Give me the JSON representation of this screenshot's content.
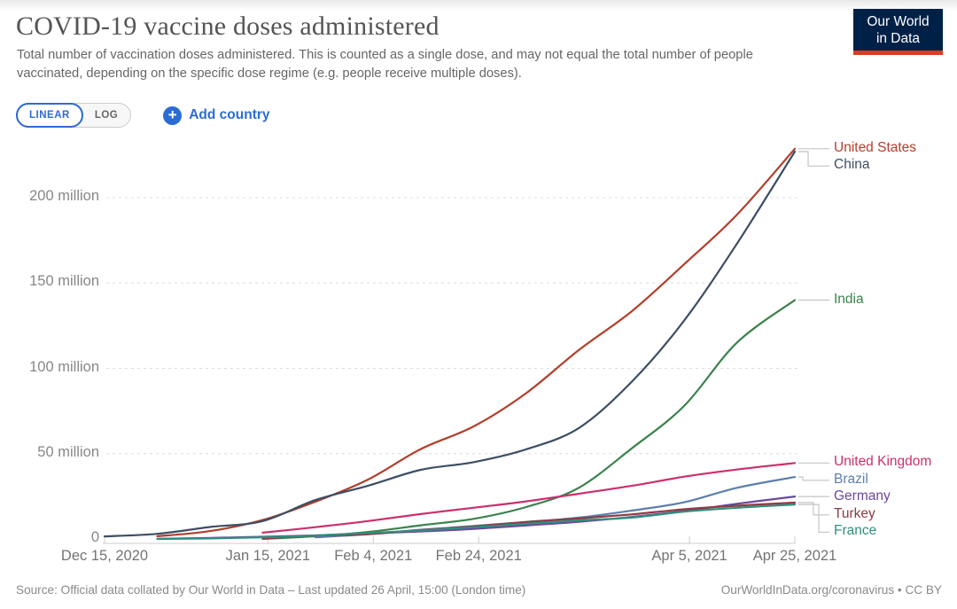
{
  "header": {
    "title": "COVID-19 vaccine doses administered",
    "subtitle": "Total number of vaccination doses administered. This is counted as a single dose, and may not equal the total number of people vaccinated, depending on the specific dose regime (e.g. people receive multiple doses).",
    "logo": {
      "line1": "Our World",
      "line2": "in Data",
      "bg_color": "#002147",
      "bar_color": "#dc3b22"
    }
  },
  "controls": {
    "scale_toggle": {
      "linear_label": "LINEAR",
      "log_label": "LOG",
      "selected": "LINEAR"
    },
    "add_country_label": "Add country",
    "plus_icon": "+",
    "accent_color": "#2b6cd3"
  },
  "chart_data": {
    "type": "line",
    "title": "COVID-19 vaccine doses administered",
    "unit": "doses (millions)",
    "grid": "dashed-horizontal",
    "legend_position": "right-end-labels",
    "ylim": [
      0,
      240
    ],
    "x": [
      "Dec 15, 2020",
      "Dec 25, 2020",
      "Jan 4, 2021",
      "Jan 14, 2021",
      "Jan 24, 2021",
      "Feb 3, 2021",
      "Feb 13, 2021",
      "Feb 23, 2021",
      "Mar 5, 2021",
      "Mar 15, 2021",
      "Mar 25, 2021",
      "Apr 4, 2021",
      "Apr 14, 2021",
      "Apr 25, 2021"
    ],
    "day_offsets": [
      0,
      10,
      20,
      30,
      40,
      50,
      60,
      70,
      80,
      90,
      100,
      110,
      120,
      131
    ],
    "yticks": [
      {
        "value": 0,
        "label": "0"
      },
      {
        "value": 50,
        "label": "50 million"
      },
      {
        "value": 100,
        "label": "100 million"
      },
      {
        "value": 150,
        "label": "150 million"
      },
      {
        "value": 200,
        "label": "200 million"
      }
    ],
    "xticks": [
      {
        "day": 0,
        "label": "Dec 15, 2020"
      },
      {
        "day": 31,
        "label": "Jan 15, 2021"
      },
      {
        "day": 51,
        "label": "Feb 4, 2021"
      },
      {
        "day": 71,
        "label": "Feb 24, 2021"
      },
      {
        "day": 111,
        "label": "Apr 5, 2021"
      },
      {
        "day": 131,
        "label": "Apr 25, 2021"
      }
    ],
    "series": [
      {
        "name": "United States",
        "color": "#b13f2b",
        "values": [
          null,
          1.6,
          4.6,
          11.1,
          21.8,
          34.8,
          52.7,
          65.9,
          85.4,
          110.7,
          133.3,
          161.0,
          190.0,
          228.7
        ]
      },
      {
        "name": "China",
        "color": "#3d4e63",
        "values": [
          1.5,
          3.0,
          7.0,
          10.5,
          22.8,
          31.2,
          40.5,
          45.0,
          52.5,
          65.0,
          92.0,
          128.0,
          173.0,
          227.0
        ]
      },
      {
        "name": "India",
        "color": "#3a824c",
        "values": [
          null,
          null,
          null,
          0.0,
          1.6,
          4.1,
          8.0,
          11.8,
          18.7,
          30.0,
          53.0,
          78.0,
          115.0,
          140.0
        ]
      },
      {
        "name": "United Kingdom",
        "color": "#cc2f6d",
        "values": [
          null,
          null,
          null,
          3.7,
          6.9,
          10.5,
          14.6,
          18.3,
          22.0,
          26.5,
          31.1,
          36.5,
          40.7,
          44.5
        ]
      },
      {
        "name": "Brazil",
        "color": "#5b7fad",
        "values": [
          null,
          null,
          null,
          null,
          1.0,
          2.8,
          5.4,
          7.6,
          10.0,
          12.5,
          16.6,
          21.5,
          30.0,
          36.3
        ]
      },
      {
        "name": "Germany",
        "color": "#6b47a0",
        "values": [
          null,
          0.1,
          0.6,
          1.3,
          2.1,
          3.3,
          4.4,
          5.9,
          7.9,
          10.1,
          12.9,
          16.4,
          20.6,
          24.9
        ]
      },
      {
        "name": "Turkey",
        "color": "#8e3b44",
        "values": [
          null,
          null,
          null,
          0.3,
          1.9,
          2.8,
          5.2,
          7.3,
          9.9,
          12.0,
          14.4,
          17.4,
          19.5,
          21.3
        ]
      },
      {
        "name": "France",
        "color": "#2f8f7d",
        "values": [
          null,
          0.0,
          0.3,
          1.0,
          2.0,
          3.5,
          5.0,
          6.9,
          8.9,
          10.9,
          12.5,
          16.0,
          18.3,
          20.2
        ]
      }
    ]
  },
  "footer": {
    "source": "Source: Official data collated by Our World in Data – Last updated 26 April, 15:00 (London time)",
    "link": "OurWorldInData.org/coronavirus",
    "separator": "•",
    "license": "CC BY"
  }
}
